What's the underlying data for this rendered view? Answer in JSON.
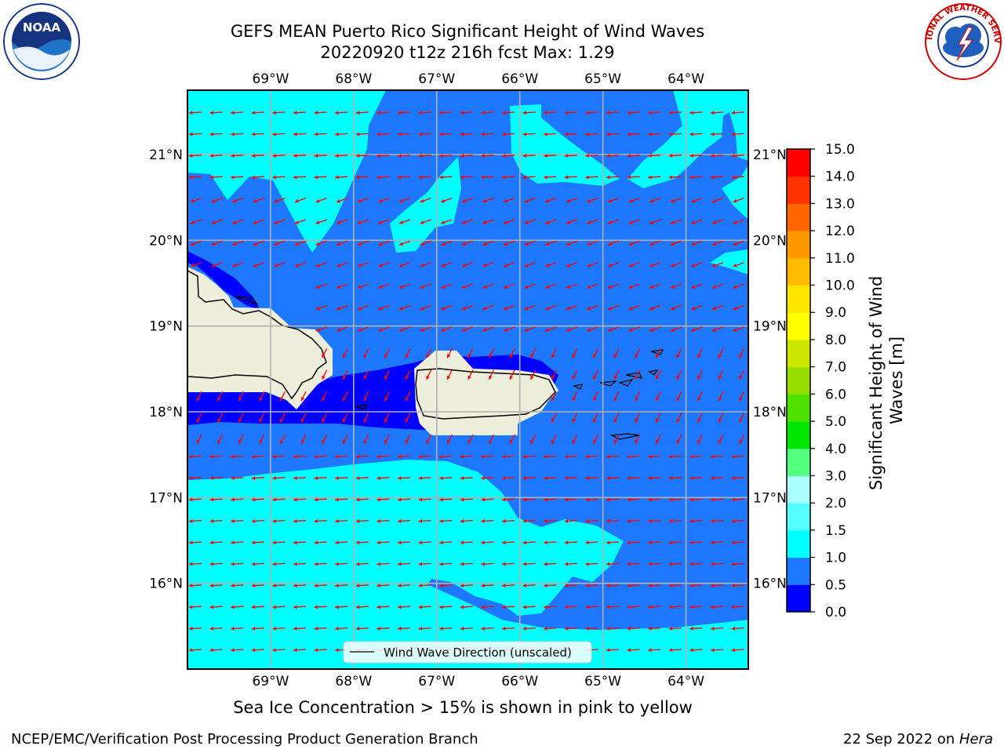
{
  "title": {
    "line1": "GEFS MEAN Puerto Rico Significant Height of Wind Waves",
    "line2": "20220920 t12z 216h fcst   Max: 1.29"
  },
  "map": {
    "lon_ticks": [
      "69°W",
      "68°W",
      "67°W",
      "66°W",
      "65°W",
      "64°W"
    ],
    "lat_ticks_left": [
      "21°N",
      "20°N",
      "19°N",
      "18°N",
      "17°N",
      "16°N"
    ],
    "lat_ticks_right": [
      "21°N",
      "20°N",
      "19°N",
      "18°N",
      "17°N",
      "16°N"
    ],
    "lon_range": [
      -70.0,
      -63.25
    ],
    "lat_range": [
      15.0,
      21.75
    ],
    "legend_label": "Wind Wave Direction (unscaled)",
    "arrow_color": "#ff0000",
    "land_color": "#eeeedd",
    "wave_direction": "toward west / west-southwest"
  },
  "colorbar": {
    "label": "Significant Height of Wind Waves [m]",
    "tick_labels": [
      "0.0",
      "0.5",
      "1.0",
      "1.5",
      "2.0",
      "3.0",
      "4.0",
      "5.0",
      "6.0",
      "7.0",
      "8.0",
      "9.0",
      "10.0",
      "11.0",
      "12.0",
      "13.0",
      "14.0",
      "15.0"
    ],
    "colors": [
      "#0000ff",
      "#1e78ff",
      "#00ffff",
      "#55ffff",
      "#aaffff",
      "#55ff7f",
      "#00e600",
      "#4ee000",
      "#99dd00",
      "#cce600",
      "#ffff00",
      "#ffe600",
      "#ffbb00",
      "#ff9900",
      "#ff6600",
      "#ff3300",
      "#ff0000"
    ]
  },
  "note": "Sea Ice Concentration > 15% is shown in pink to yellow",
  "footer": {
    "left": "NCEP/EMC/Verification Post Processing Product Generation Branch",
    "right_date": "22 Sep 2022 on ",
    "right_machine": "Hera"
  },
  "logos": {
    "left": "NOAA",
    "right": "NATIONAL WEATHER SERVICE"
  }
}
